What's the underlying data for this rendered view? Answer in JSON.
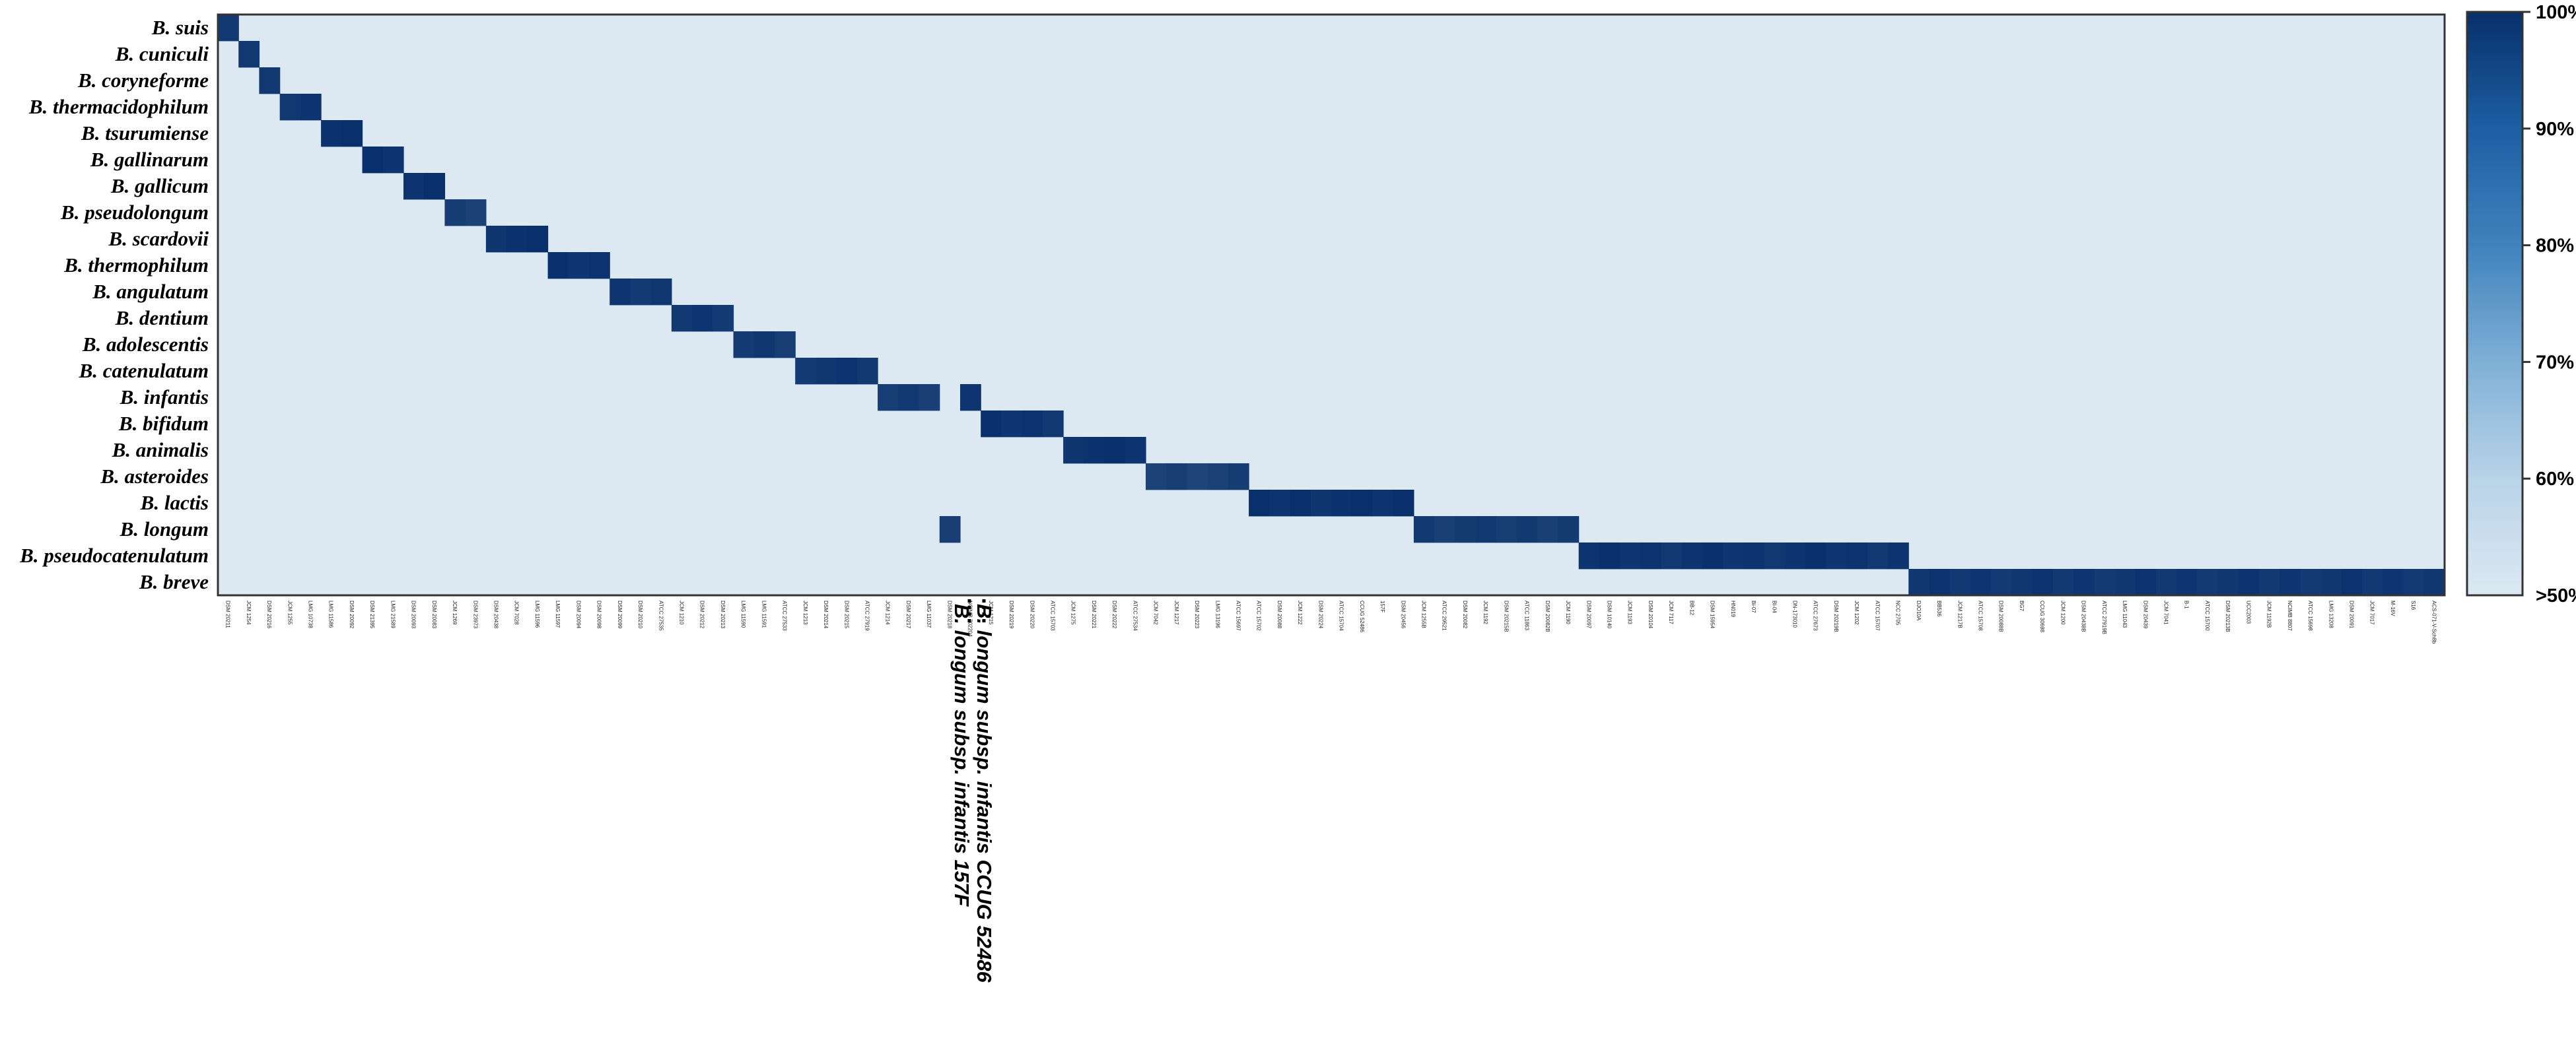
{
  "chart_data": {
    "type": "heatmap",
    "title": "",
    "xlabel": "",
    "ylabel": "",
    "rows": [
      "B. suis",
      "B. cuniculi",
      "B. coryneforme",
      "B. thermacidophilum",
      "B. tsurumiense",
      "B. gallinarum",
      "B. gallicum",
      "B. pseudolongum",
      "B. scardovii",
      "B. thermophilum",
      "B. angulatum",
      "B. dentium",
      "B. adolescentis",
      "B. catenulatum",
      "B. infantis",
      "B. bifidum",
      "B. animalis",
      "B. asteroides",
      "B. lactis",
      "B. longum",
      "B. pseudocatenulatum",
      "B. breve"
    ],
    "columns": [
      "DSM 20211",
      "JCM 1254",
      "DSM 20216",
      "JCM 1255",
      "LMG 10738",
      "LMG 11586",
      "DSM 20092",
      "DSM 21395",
      "LMG 21589",
      "DSM 20093",
      "DSM 20083",
      "JCM 1269",
      "DSM 23973",
      "DSM 20438",
      "JCM 7028",
      "LMG 11596",
      "LMG 11597",
      "DSM 20094",
      "DSM 20098",
      "DSM 20099",
      "DSM 20210",
      "ATCC 27535",
      "JCM 1210",
      "DSM 20212",
      "DSM 20213",
      "LMG 11590",
      "LMG 11591",
      "ATCC 27533",
      "JCM 1213",
      "DSM 20214",
      "DSM 20215",
      "ATCC 27919",
      "JCM 1214",
      "DSM 20217",
      "LMG 11037",
      "DSM 20218",
      "NCIMB 702204",
      "JCM 1215",
      "DSM 20219",
      "DSM 20220",
      "ATCC 15703",
      "JCM 1275",
      "DSM 20221",
      "DSM 20222",
      "ATCC 27534",
      "JCM 7042",
      "JCM 1217",
      "DSM 20223",
      "LMG 13196",
      "ATCC 15697",
      "ATCC 15702",
      "DSM 20088",
      "JCM 1222",
      "DSM 20224",
      "ATCC 15704",
      "CCUG 52486",
      "157F",
      "DSM 20456",
      "JCM 1255B",
      "ATCC 29521",
      "DSM 20082",
      "JCM 1192",
      "DSM 20215B",
      "ATCC 11863",
      "DSM 20082B",
      "JCM 1190",
      "DSM 20097",
      "DSM 10140",
      "JCM 1193",
      "DSM 20104",
      "JCM 7117",
      "BB-12",
      "DSM 15954",
      "HN019",
      "Bi-07",
      "Bl-04",
      "DN-173010",
      "ATCC 27673",
      "DSM 20219B",
      "JCM 1202",
      "ATCC 15707",
      "NCC 2705",
      "DJO10A",
      "BB536",
      "JCM 1217B",
      "ATCC 15708",
      "DSM 20088B",
      "BG7",
      "CCUG 30698",
      "JCM 1200",
      "DSM 20438B",
      "ATCC 27919B",
      "LMG 11043",
      "DSM 20439",
      "JCM 7041",
      "B-1",
      "ATCC 15700",
      "DSM 20213B",
      "UCC2003",
      "JCM 1192B",
      "NCIMB 8807",
      "ATCC 15698",
      "LMG 13208",
      "DSM 20091",
      "JCM 7017",
      "M-16V",
      "S16",
      "ACS-071-V-Sch8b"
    ],
    "breaks_between_columns": 0,
    "matrix_encoding": "per-row: [start column index, end column index (exclusive), percent identity]; all other cells ≤50%",
    "row_blocks": [
      [
        [
          0,
          1,
          98
        ]
      ],
      [
        [
          1,
          2,
          98
        ]
      ],
      [
        [
          2,
          3,
          98
        ]
      ],
      [
        [
          3,
          5,
          98
        ]
      ],
      [
        [
          5,
          7,
          99
        ]
      ],
      [
        [
          7,
          9,
          99
        ]
      ],
      [
        [
          9,
          11,
          99
        ]
      ],
      [
        [
          11,
          13,
          94
        ]
      ],
      [
        [
          13,
          16,
          99
        ]
      ],
      [
        [
          16,
          19,
          98
        ]
      ],
      [
        [
          19,
          22,
          97
        ]
      ],
      [
        [
          22,
          25,
          96
        ]
      ],
      [
        [
          25,
          28,
          96
        ]
      ],
      [
        [
          28,
          32,
          97
        ]
      ],
      [
        [
          32,
          35,
          95
        ],
        [
          36,
          37,
          96
        ]
      ],
      [
        [
          37,
          41,
          98
        ]
      ],
      [
        [
          41,
          45,
          99
        ]
      ],
      [
        [
          45,
          50,
          93
        ]
      ],
      [
        [
          50,
          58,
          99
        ]
      ],
      [
        [
          35,
          36,
          94
        ],
        [
          58,
          66,
          95
        ]
      ],
      [
        [
          66,
          82,
          98
        ]
      ],
      [
        [
          82,
          108,
          97
        ]
      ]
    ],
    "color_scale": {
      "min_label": ">50%",
      "ticks": [
        {
          "label": "60%",
          "value": 60
        },
        {
          "label": "70%",
          "value": 70
        },
        {
          "label": "80%",
          "value": 80
        },
        {
          "label": "90%",
          "value": 90
        },
        {
          "label": "100%",
          "value": 100
        }
      ],
      "low_color": "#dce9f3",
      "high_color": "#08306b"
    },
    "annotations": [
      "B. longum subsp. infantis CCUG 52486",
      "B. longum subsp. infantis 157F"
    ]
  }
}
